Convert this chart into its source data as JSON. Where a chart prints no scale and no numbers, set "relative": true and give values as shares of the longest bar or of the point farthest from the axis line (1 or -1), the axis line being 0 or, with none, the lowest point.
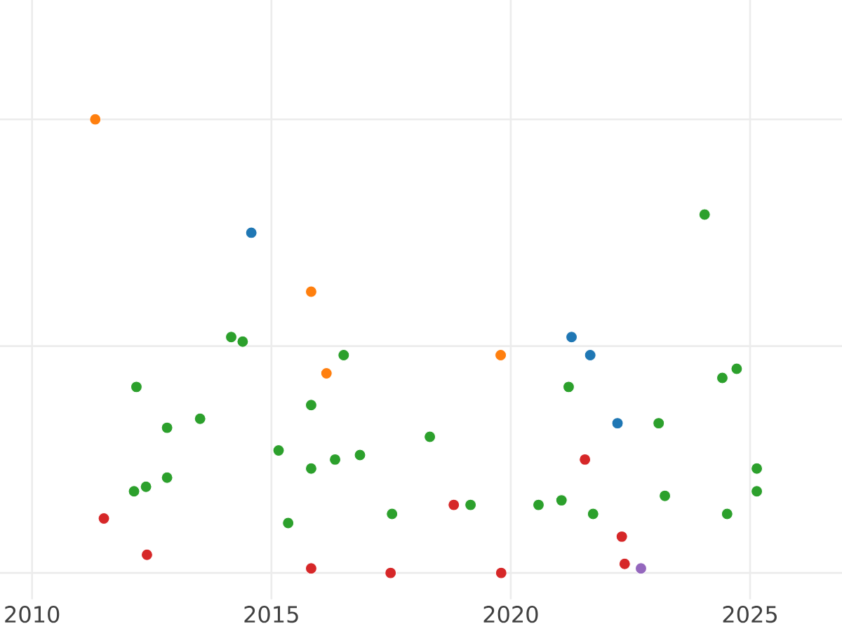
{
  "chart_data": {
    "type": "scatter",
    "relative": true,
    "grid": true,
    "tick_labels": "x",
    "marker": "circle",
    "xlim": [
      2009.33,
      2026.92
    ],
    "xticks": [
      2010,
      2015,
      2020,
      2025
    ],
    "series": [
      {
        "color": "#1f77b4",
        "x": [
          2014.58,
          2021.27,
          2021.66,
          2022.23
        ],
        "values": [
          0.75,
          0.52,
          0.48,
          0.33
        ]
      },
      {
        "color": "#ff7f0e",
        "x": [
          2011.32,
          2015.83,
          2016.15,
          2019.79
        ],
        "values": [
          1.0,
          0.62,
          0.44,
          0.48
        ]
      },
      {
        "color": "#2ca02c",
        "x": [
          2014.16,
          2014.4,
          2016.51,
          2024.05,
          2021.21,
          2024.42,
          2024.72,
          2012.18,
          2012.82,
          2013.51,
          2015.83,
          2015.15,
          2016.33,
          2016.85,
          2015.83,
          2012.82,
          2012.13,
          2012.38,
          2015.35,
          2017.52,
          2018.31,
          2025.14,
          2025.14,
          2019.16,
          2020.58,
          2021.06,
          2021.72,
          2023.22,
          2024.52,
          2023.09
        ],
        "values": [
          0.52,
          0.51,
          0.48,
          0.79,
          0.41,
          0.43,
          0.45,
          0.41,
          0.32,
          0.34,
          0.37,
          0.27,
          0.25,
          0.26,
          0.23,
          0.21,
          0.18,
          0.19,
          0.11,
          0.13,
          0.3,
          0.23,
          0.18,
          0.15,
          0.15,
          0.16,
          0.13,
          0.17,
          0.13,
          0.33
        ]
      },
      {
        "color": "#d62728",
        "x": [
          2011.5,
          2012.4,
          2015.83,
          2017.49,
          2018.81,
          2021.55,
          2022.32,
          2022.38,
          2019.8
        ],
        "values": [
          0.12,
          0.04,
          0.01,
          0,
          0.15,
          0.25,
          0.08,
          0.02,
          0
        ]
      },
      {
        "color": "#9467bd",
        "x": [
          2022.72
        ],
        "values": [
          0.01
        ]
      }
    ]
  }
}
